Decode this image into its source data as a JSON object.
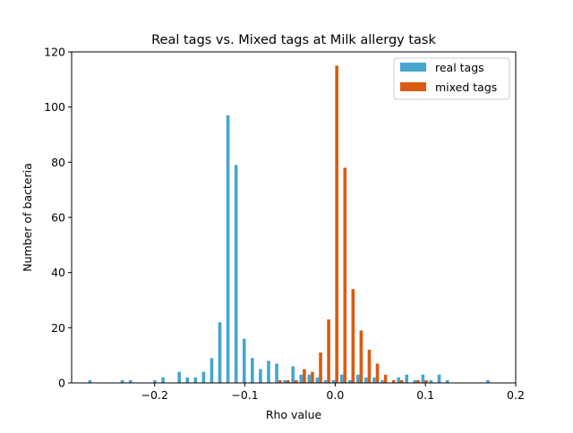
{
  "chart_data": {
    "type": "bar",
    "title": "Real tags vs. Mixed tags at Milk allergy task",
    "xlabel": "Rho value",
    "ylabel": "Number of bacteria",
    "xlim": [
      -0.292,
      0.2
    ],
    "ylim": [
      0,
      120
    ],
    "xticks": [
      -0.2,
      -0.1,
      0.0,
      0.1,
      0.2
    ],
    "xtick_labels": [
      "−0.2",
      "−0.1",
      "0.0",
      "0.1",
      "0.2"
    ],
    "yticks": [
      0,
      20,
      40,
      60,
      80,
      100,
      120
    ],
    "ytick_labels": [
      "0",
      "20",
      "40",
      "60",
      "80",
      "100",
      "120"
    ],
    "grid": false,
    "legend_position": "top-right",
    "bin_width": 0.009,
    "series": [
      {
        "name": "real tags",
        "color": "#46a6cf",
        "points": [
          [
            -0.27,
            1
          ],
          [
            -0.234,
            1
          ],
          [
            -0.225,
            1
          ],
          [
            -0.198,
            1
          ],
          [
            -0.189,
            2
          ],
          [
            -0.171,
            4
          ],
          [
            -0.162,
            2
          ],
          [
            -0.153,
            2
          ],
          [
            -0.144,
            4
          ],
          [
            -0.135,
            9
          ],
          [
            -0.126,
            22
          ],
          [
            -0.117,
            97
          ],
          [
            -0.108,
            79
          ],
          [
            -0.099,
            16
          ],
          [
            -0.09,
            9
          ],
          [
            -0.081,
            5
          ],
          [
            -0.072,
            8
          ],
          [
            -0.063,
            7
          ],
          [
            -0.054,
            1
          ],
          [
            -0.045,
            6
          ],
          [
            -0.036,
            3
          ],
          [
            -0.027,
            3
          ],
          [
            -0.018,
            2
          ],
          [
            -0.009,
            1
          ],
          [
            0.0,
            1
          ],
          [
            0.009,
            3
          ],
          [
            0.018,
            1
          ],
          [
            0.027,
            3
          ],
          [
            0.036,
            2
          ],
          [
            0.045,
            2
          ],
          [
            0.054,
            1
          ],
          [
            0.072,
            2
          ],
          [
            0.081,
            3
          ],
          [
            0.09,
            1
          ],
          [
            0.099,
            3
          ],
          [
            0.108,
            1
          ],
          [
            0.117,
            3
          ],
          [
            0.126,
            1
          ],
          [
            0.171,
            1
          ]
        ]
      },
      {
        "name": "mixed tags",
        "color": "#d95b14",
        "points": [
          [
            -0.063,
            1
          ],
          [
            -0.054,
            1
          ],
          [
            -0.045,
            1
          ],
          [
            -0.036,
            5
          ],
          [
            -0.027,
            4
          ],
          [
            -0.018,
            11
          ],
          [
            -0.009,
            23
          ],
          [
            0.0,
            115
          ],
          [
            0.009,
            78
          ],
          [
            0.018,
            34
          ],
          [
            0.027,
            19
          ],
          [
            0.036,
            12
          ],
          [
            0.045,
            7
          ],
          [
            0.054,
            3
          ],
          [
            0.063,
            1
          ],
          [
            0.072,
            1
          ],
          [
            0.09,
            1
          ],
          [
            0.099,
            1
          ]
        ]
      }
    ]
  }
}
